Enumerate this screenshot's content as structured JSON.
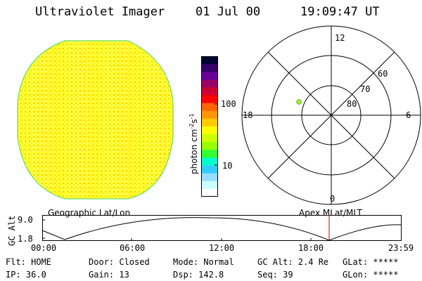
{
  "header": {
    "instrument": "Ultraviolet Imager",
    "date": "01 Jul 00",
    "time": "19:09:47 UT"
  },
  "image_panel": {
    "label": "Geographic Lat/Lon",
    "fill_color": "#ffff33",
    "speckle_color": "#ffcc00",
    "edge_color": "#66dd66"
  },
  "colorbar": {
    "label": "photon cm-2s-1",
    "label_main": "photon cm",
    "label_exp1": "-2",
    "label_s": "s",
    "label_exp2": "-1",
    "ticks": [
      "100",
      "10"
    ],
    "colors": [
      "#000033",
      "#330066",
      "#660099",
      "#990066",
      "#cc0033",
      "#ff0000",
      "#ff6600",
      "#ff9900",
      "#ffcc00",
      "#ffff00",
      "#ccff00",
      "#99ff00",
      "#33ff33",
      "#00ffcc",
      "#33ccff",
      "#99ddff",
      "#ccffff",
      "#ffffff"
    ]
  },
  "polar_plot": {
    "label": "Apex MLat/MLT",
    "hour_labels": {
      "top": "12",
      "left": "18",
      "right": "6",
      "bottom": "0"
    },
    "lat_labels": [
      "60",
      "70",
      "80"
    ],
    "marker_color": "#99ee33"
  },
  "altitude_plot": {
    "ylabel": "GC Alt",
    "yticks": [
      "9.0",
      "1.8"
    ],
    "xticks": [
      "00:00",
      "06:00",
      "12:00",
      "18:00",
      "23:59"
    ],
    "current_marker_color": "#cc0000"
  },
  "status": {
    "filter": "Flt: HOME",
    "door": "Door: Closed",
    "mode": "Mode: Normal",
    "gc_alt": "GC Alt: 2.4 Re",
    "glat": "GLat: *****",
    "ip": "IP: 36.0",
    "gain": "Gain: 13",
    "dsp": "Dsp:  142.8",
    "seq": "Seq: 39",
    "glon": "GLon: *****"
  }
}
